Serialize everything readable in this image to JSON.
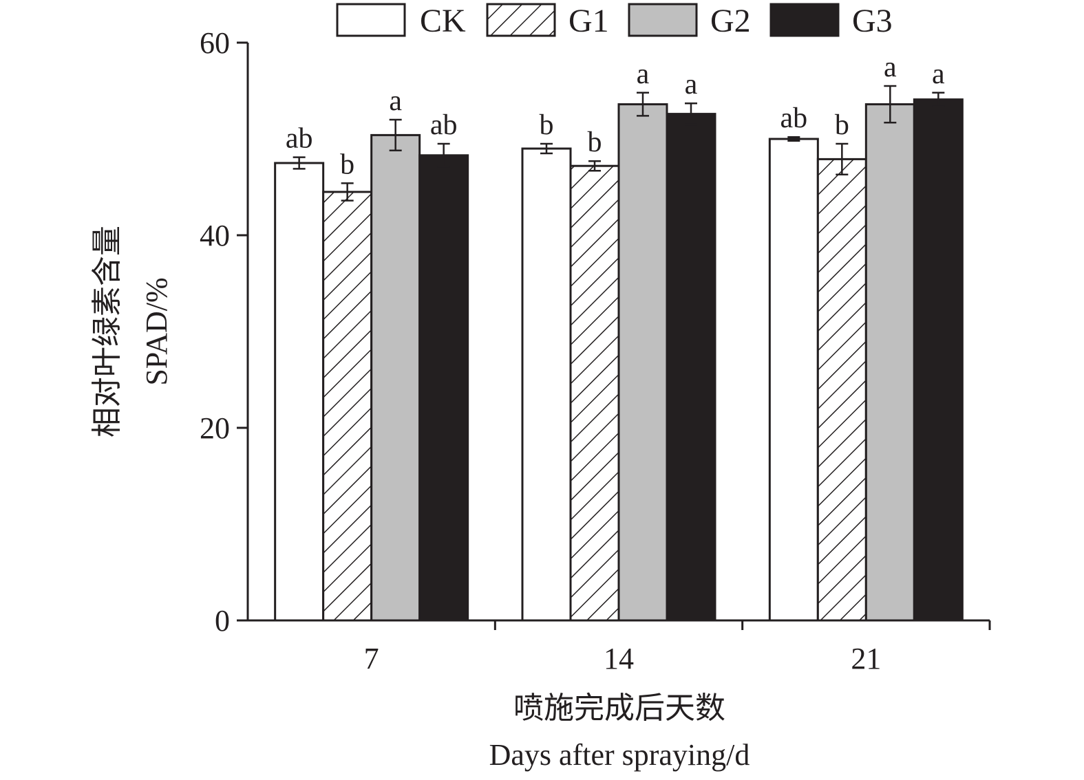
{
  "chart_data": {
    "type": "bar",
    "categories": [
      "7",
      "14",
      "21"
    ],
    "series": [
      {
        "name": "CK",
        "color": "#ffffff",
        "pattern": "none",
        "values": [
          47.5,
          49.0,
          50.0
        ],
        "errors": [
          0.6,
          0.5,
          0.2
        ],
        "significance": [
          "ab",
          "b",
          "ab"
        ]
      },
      {
        "name": "G1",
        "color": "#ffffff",
        "pattern": "diagonal-hatch",
        "values": [
          44.5,
          47.2,
          47.9
        ],
        "errors": [
          0.9,
          0.5,
          1.6
        ],
        "significance": [
          "b",
          "b",
          "b"
        ]
      },
      {
        "name": "G2",
        "color": "#bfbfbf",
        "pattern": "none",
        "values": [
          50.4,
          53.6,
          53.6
        ],
        "errors": [
          1.6,
          1.2,
          1.9
        ],
        "significance": [
          "a",
          "a",
          "a"
        ]
      },
      {
        "name": "G3",
        "color": "#231f20",
        "pattern": "none",
        "values": [
          48.3,
          52.6,
          54.1
        ],
        "errors": [
          1.2,
          1.1,
          0.7
        ],
        "significance": [
          "ab",
          "a",
          "a"
        ]
      }
    ],
    "ylim": [
      0,
      60
    ],
    "yticks": [
      0,
      20,
      40,
      60
    ],
    "ylabel_cn": "相对叶绿素含量",
    "ylabel_en": "SPAD/%",
    "xlabel_cn": "喷施完成后天数",
    "xlabel_en": "Days after spraying/d",
    "legend_position": "top"
  }
}
